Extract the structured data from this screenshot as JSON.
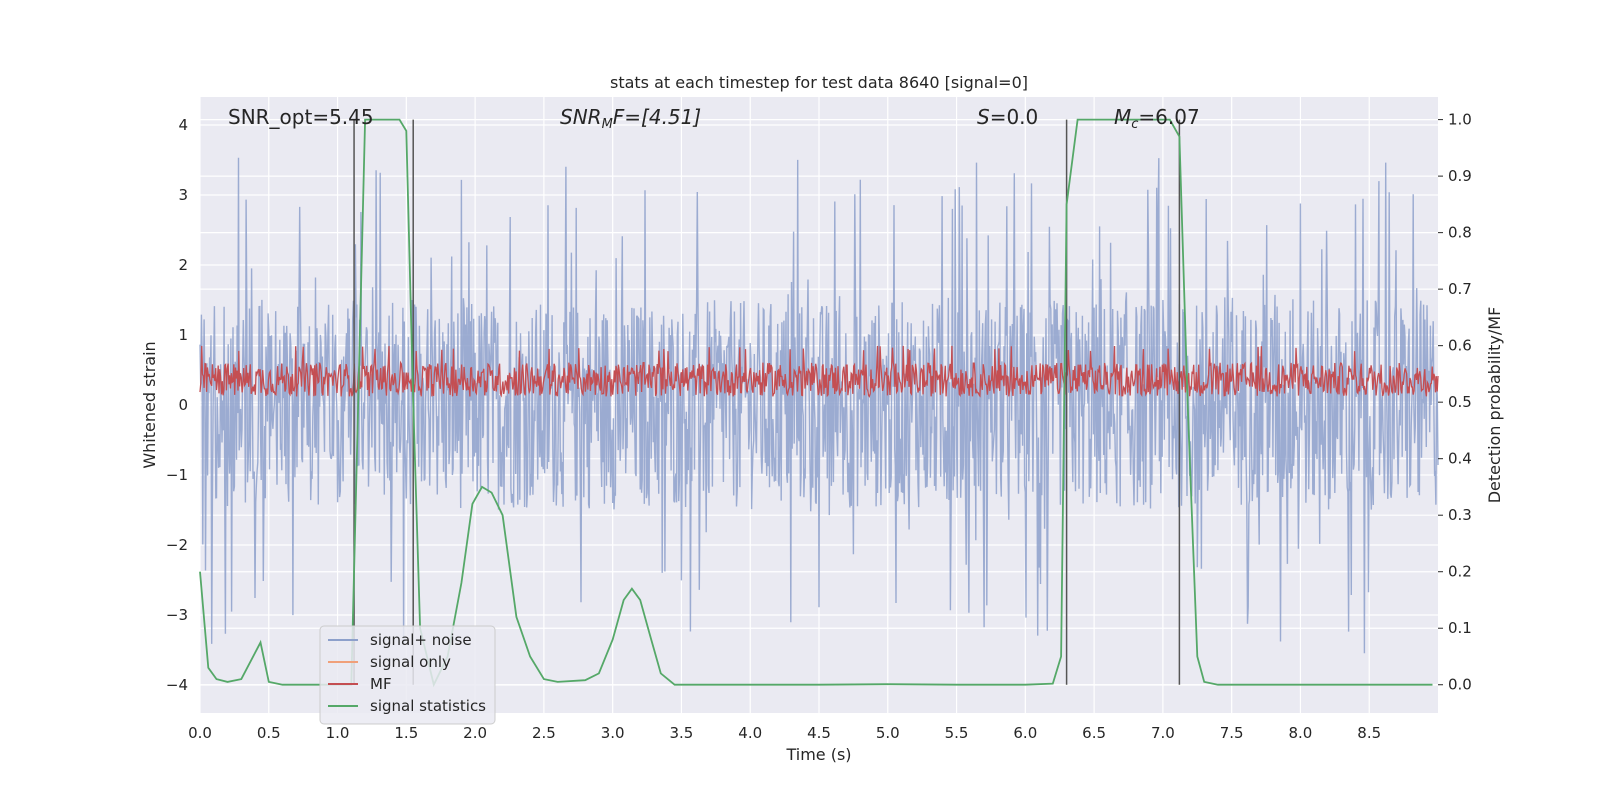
{
  "chart_data": {
    "type": "line",
    "title": "stats at each timestep for test data 8640 [signal=0]",
    "xlabel": "Time (s)",
    "ylabel": "Whitened strain",
    "y2label": "Detection probability/MF",
    "xlim": [
      0,
      9.0
    ],
    "ylim": [
      -4.4,
      4.4
    ],
    "y2lim": [
      -0.05,
      1.04
    ],
    "xticks": [
      "0.0",
      "0.5",
      "1.0",
      "1.5",
      "2.0",
      "2.5",
      "3.0",
      "3.5",
      "4.0",
      "4.5",
      "5.0",
      "5.5",
      "6.0",
      "6.5",
      "7.0",
      "7.5",
      "8.0",
      "8.5"
    ],
    "yticks": [
      "4",
      "3",
      "2",
      "1",
      "0",
      "−1",
      "−2",
      "−3",
      "−4"
    ],
    "y2ticks": [
      "1.0",
      "0.9",
      "0.8",
      "0.7",
      "0.6",
      "0.5",
      "0.4",
      "0.3",
      "0.2",
      "0.1",
      "0.0"
    ],
    "grid": true,
    "legend": {
      "position": "lower-left",
      "entries": [
        {
          "label": "signal+ noise",
          "color": "#8da0cb"
        },
        {
          "label": "signal only",
          "color": "#f0a07a"
        },
        {
          "label": "MF",
          "color": "#c44e52"
        },
        {
          "label": "signal statistics",
          "color": "#55a868"
        }
      ]
    },
    "annotations": {
      "snr_opt": "SNR_opt=5.45",
      "snr_mf_pre": "SNR",
      "snr_mf_sub": "M",
      "snr_mf_post": "F=[4.51]",
      "s_var": "S",
      "s_val": "=0.0",
      "mc_var": "M",
      "mc_sub": "c",
      "mc_val": "=6.07"
    },
    "vlines": [
      1.12,
      1.55,
      6.3,
      7.12
    ],
    "series": [
      {
        "name": "signal+ noise",
        "color": "#8da0cb",
        "axis": "left",
        "description": "whitened strain noise, amplitude roughly -2 to +2 with spikes to about +/-3.7",
        "envelope_abs": 1.5,
        "peak_abs": 3.6
      },
      {
        "name": "MF",
        "color": "#c44e52",
        "axis": "right",
        "baseline": 0.54,
        "range": [
          0.5,
          0.6
        ]
      },
      {
        "name": "signal statistics",
        "color": "#55a868",
        "axis": "right",
        "points": [
          [
            0.0,
            0.2
          ],
          [
            0.06,
            0.03
          ],
          [
            0.12,
            0.01
          ],
          [
            0.2,
            0.005
          ],
          [
            0.3,
            0.01
          ],
          [
            0.44,
            0.075
          ],
          [
            0.5,
            0.005
          ],
          [
            0.6,
            0.0
          ],
          [
            1.0,
            0.0
          ],
          [
            1.1,
            0.0
          ],
          [
            1.15,
            0.5
          ],
          [
            1.2,
            1.0
          ],
          [
            1.3,
            1.0
          ],
          [
            1.45,
            1.0
          ],
          [
            1.5,
            0.98
          ],
          [
            1.55,
            0.5
          ],
          [
            1.6,
            0.1
          ],
          [
            1.7,
            0.0
          ],
          [
            1.8,
            0.05
          ],
          [
            1.9,
            0.18
          ],
          [
            1.98,
            0.32
          ],
          [
            2.05,
            0.35
          ],
          [
            2.12,
            0.34
          ],
          [
            2.2,
            0.3
          ],
          [
            2.3,
            0.12
          ],
          [
            2.4,
            0.05
          ],
          [
            2.5,
            0.01
          ],
          [
            2.6,
            0.005
          ],
          [
            2.8,
            0.008
          ],
          [
            2.9,
            0.02
          ],
          [
            3.0,
            0.08
          ],
          [
            3.08,
            0.15
          ],
          [
            3.14,
            0.17
          ],
          [
            3.2,
            0.15
          ],
          [
            3.28,
            0.08
          ],
          [
            3.35,
            0.02
          ],
          [
            3.45,
            0.0
          ],
          [
            4.0,
            0.0
          ],
          [
            4.5,
            0.0
          ],
          [
            5.0,
            0.001
          ],
          [
            5.5,
            0.0
          ],
          [
            6.0,
            0.0
          ],
          [
            6.2,
            0.002
          ],
          [
            6.26,
            0.05
          ],
          [
            6.3,
            0.85
          ],
          [
            6.38,
            1.0
          ],
          [
            7.0,
            1.0
          ],
          [
            7.05,
            1.0
          ],
          [
            7.12,
            0.97
          ],
          [
            7.18,
            0.5
          ],
          [
            7.25,
            0.05
          ],
          [
            7.3,
            0.005
          ],
          [
            7.4,
            0.0
          ],
          [
            8.96,
            0.0
          ]
        ]
      }
    ]
  }
}
